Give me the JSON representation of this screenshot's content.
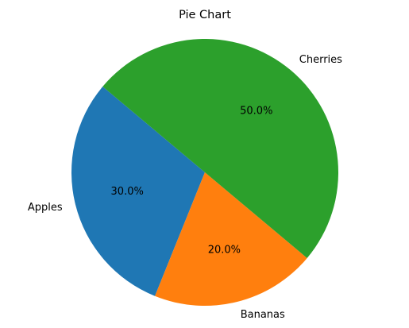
{
  "chart_data": {
    "type": "pie",
    "title": "Pie Chart",
    "categories": [
      "Apples",
      "Bananas",
      "Cherries"
    ],
    "values": [
      30,
      20,
      50
    ],
    "percent_labels": [
      "30.0%",
      "20.0%",
      "50.0%"
    ],
    "colors": [
      "#1f77b4",
      "#ff7f0e",
      "#2ca02c"
    ],
    "start_angle_deg": 140,
    "direction": "counterclockwise",
    "legend": "none"
  }
}
